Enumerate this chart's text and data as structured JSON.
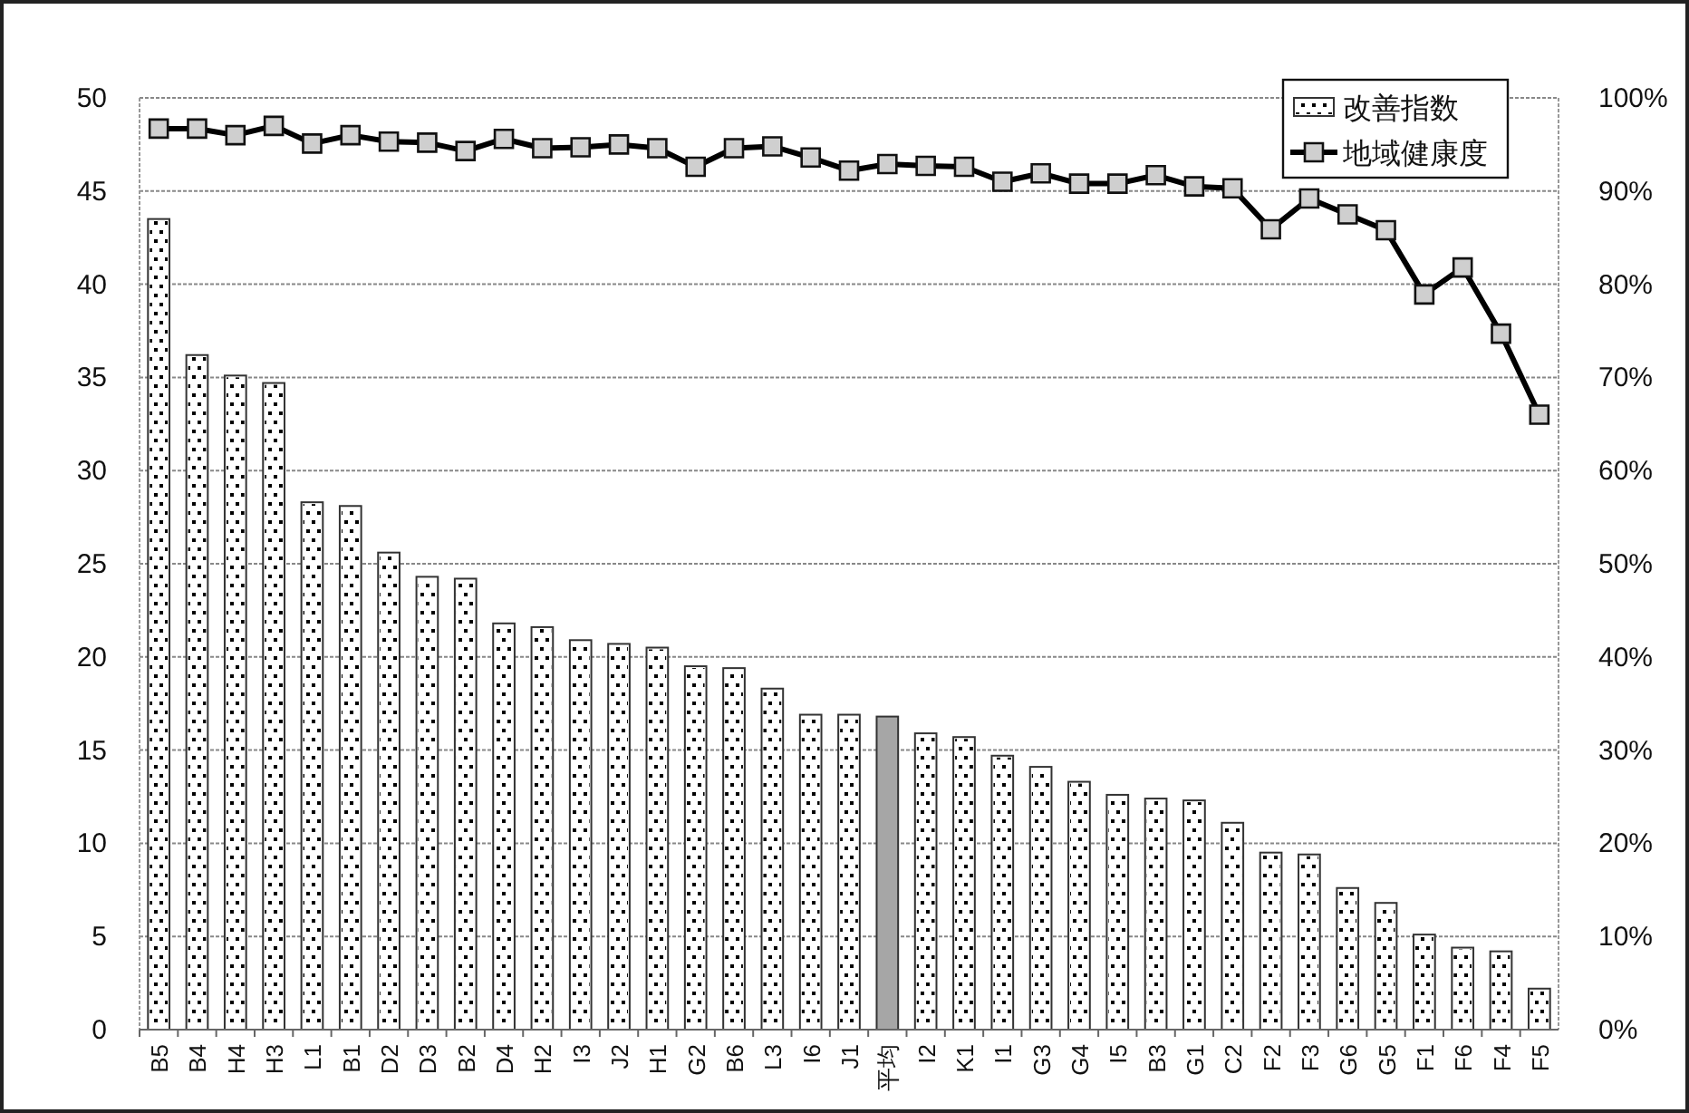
{
  "chart_data": {
    "type": "bar",
    "categories": [
      "B5",
      "B4",
      "H4",
      "H3",
      "L1",
      "B1",
      "D2",
      "D3",
      "B2",
      "D4",
      "H2",
      "I3",
      "J2",
      "H1",
      "G2",
      "B6",
      "L3",
      "I6",
      "J1",
      "平均",
      "I2",
      "K1",
      "I1",
      "G3",
      "G4",
      "I5",
      "B3",
      "G1",
      "C2",
      "F2",
      "F3",
      "G6",
      "G5",
      "F1",
      "F6",
      "F4",
      "F5"
    ],
    "series": [
      {
        "name": "改善指数",
        "color": "#ffffff",
        "colors": [
          "#ffffff",
          "#ffffff",
          "#ffffff",
          "#ffffff",
          "#ffffff",
          "#ffffff",
          "#ffffff",
          "#ffffff",
          "#ffffff",
          "#ffffff",
          "#ffffff",
          "#ffffff",
          "#ffffff",
          "#ffffff",
          "#ffffff",
          "#ffffff",
          "#ffffff",
          "#ffffff",
          "#ffffff",
          "#a6a6a6",
          "#ffffff",
          "#ffffff",
          "#ffffff",
          "#ffffff",
          "#ffffff",
          "#ffffff",
          "#ffffff",
          "#ffffff",
          "#ffffff",
          "#ffffff",
          "#ffffff",
          "#ffffff",
          "#ffffff",
          "#ffffff",
          "#ffffff",
          "#ffffff",
          "#ffffff"
        ],
        "values": [
          43.5,
          36.2,
          35.1,
          34.7,
          28.3,
          28.1,
          25.6,
          24.3,
          24.2,
          21.8,
          21.6,
          20.9,
          20.7,
          20.5,
          19.5,
          19.4,
          18.3,
          16.9,
          16.9,
          16.8,
          15.9,
          15.7,
          14.7,
          14.1,
          13.3,
          12.6,
          12.4,
          12.3,
          11.1,
          9.5,
          9.4,
          7.6,
          6.8,
          5.1,
          4.4,
          4.2,
          2.2
        ]
      },
      {
        "name": "地域健康度",
        "type": "line",
        "axis": "y2",
        "color": "#000000",
        "marker": "square",
        "values": [
          96.7,
          96.7,
          96.0,
          97.0,
          95.1,
          96.0,
          95.3,
          95.2,
          94.3,
          95.6,
          94.6,
          94.7,
          95.0,
          94.6,
          92.6,
          94.6,
          94.8,
          93.6,
          92.2,
          92.9,
          92.7,
          92.6,
          91.0,
          91.9,
          90.8,
          90.8,
          91.7,
          90.5,
          90.3,
          85.9,
          89.2,
          87.5,
          85.8,
          78.9,
          81.8,
          74.7,
          66.0
        ]
      }
    ],
    "ylim": [
      0,
      50
    ],
    "yticks": [
      0,
      5,
      10,
      15,
      20,
      25,
      30,
      35,
      40,
      45,
      50
    ],
    "y2lim": [
      0,
      100
    ],
    "y2ticks": [
      {
        "value": 0,
        "label": "0%"
      },
      {
        "value": 10,
        "label": "10%"
      },
      {
        "value": 20,
        "label": "20%"
      },
      {
        "value": 30,
        "label": "30%"
      },
      {
        "value": 40,
        "label": "40%"
      },
      {
        "value": 50,
        "label": "50%"
      },
      {
        "value": 60,
        "label": "60%"
      },
      {
        "value": 70,
        "label": "70%"
      },
      {
        "value": 80,
        "label": "80%"
      },
      {
        "value": 90,
        "label": "90%"
      },
      {
        "value": 100,
        "label": "100%"
      }
    ],
    "grid": "y",
    "legend": "top right"
  }
}
